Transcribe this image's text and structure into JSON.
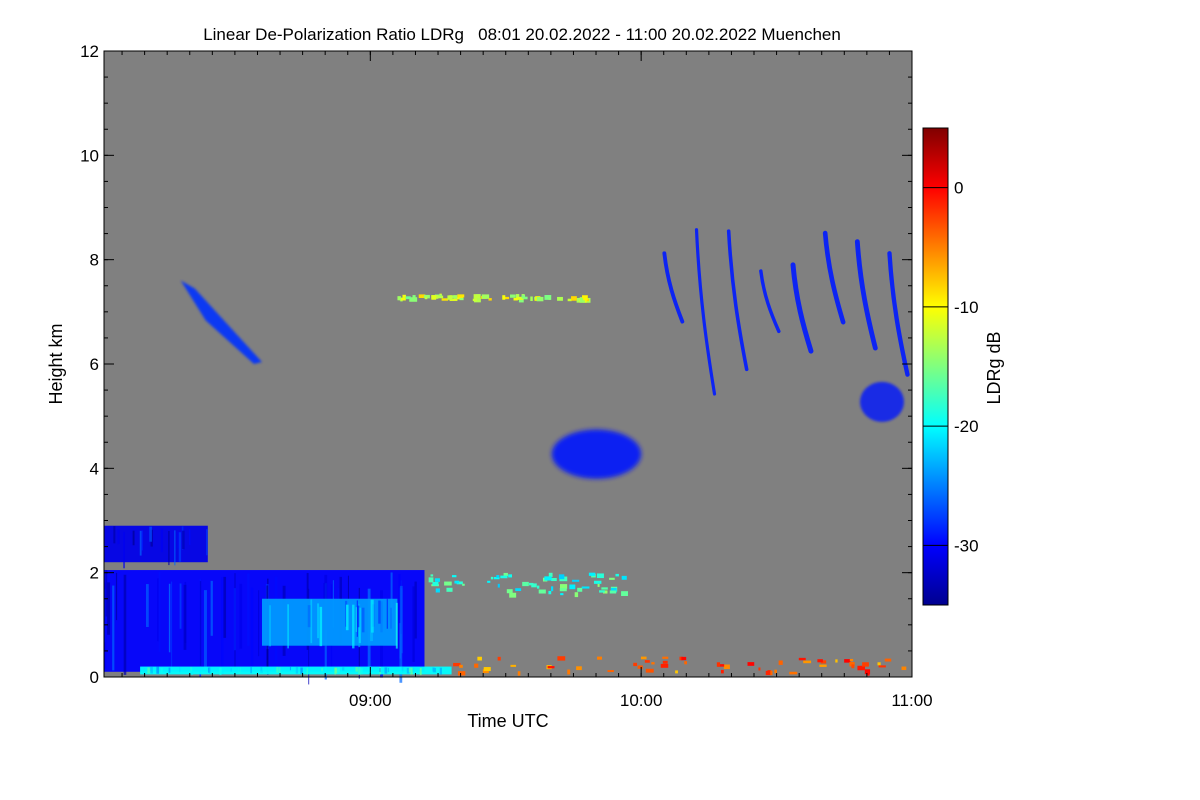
{
  "chart_data": {
    "type": "heatmap",
    "title": "Linear De-Polarization Ratio LDRg   08:01 20.02.2022 - 11:00 20.02.2022 Muenchen",
    "xlabel": "Time UTC",
    "ylabel": "Height km",
    "x_range_utc_hours": [
      8.0167,
      11.0
    ],
    "y_range_km": [
      0,
      12
    ],
    "x_ticks": [
      {
        "value": 9.0,
        "label": "09:00"
      },
      {
        "value": 10.0,
        "label": "10:00"
      },
      {
        "value": 11.0,
        "label": "11:00"
      }
    ],
    "y_ticks": [
      {
        "value": 0,
        "label": "0"
      },
      {
        "value": 2,
        "label": "2"
      },
      {
        "value": 4,
        "label": "4"
      },
      {
        "value": 6,
        "label": "6"
      },
      {
        "value": 8,
        "label": "8"
      },
      {
        "value": 10,
        "label": "10"
      },
      {
        "value": 12,
        "label": "12"
      }
    ],
    "colorbar": {
      "label": "LDRg dB",
      "range_db": [
        -35,
        5
      ],
      "ticks": [
        {
          "value": 0,
          "label": "0"
        },
        {
          "value": -10,
          "label": "-10"
        },
        {
          "value": -20,
          "label": "-20"
        },
        {
          "value": -30,
          "label": "-30"
        }
      ]
    },
    "background_no_data_color": "#808080",
    "regions": [
      {
        "name": "boundary-layer",
        "t_start": 8.017,
        "t_end": 9.2,
        "h_bottom": 0.1,
        "h_top": 2.05,
        "ldr_db": -30
      },
      {
        "name": "boundary-layer-core",
        "t_start": 8.6,
        "t_end": 9.1,
        "h_bottom": 0.6,
        "h_top": 1.5,
        "ldr_db": -24
      },
      {
        "name": "boundary-layer-base",
        "t_start": 8.15,
        "t_end": 9.3,
        "h_bottom": 0.05,
        "h_top": 0.2,
        "ldr_db": -20
      },
      {
        "name": "low-cloud-top",
        "t_start": 8.017,
        "t_end": 8.4,
        "h_bottom": 2.2,
        "h_top": 2.9,
        "ldr_db": -31
      },
      {
        "name": "aerosol-layer-edge",
        "t_start": 9.2,
        "t_end": 9.95,
        "h_bottom": 1.6,
        "h_top": 2.0,
        "ldr_db": -18
      },
      {
        "name": "mid-level-cloud",
        "t_start": 9.67,
        "t_end": 10.0,
        "h_bottom": 3.8,
        "h_top": 4.85,
        "ldr_db": -29
      },
      {
        "name": "cirrus-fall-streak-1",
        "t_start": 8.3,
        "t_end": 8.6,
        "h_bottom": 6.0,
        "h_top": 7.6,
        "ldr_db": -28
      },
      {
        "name": "cirrus-fall-streaks",
        "t_start": 10.05,
        "t_end": 11.0,
        "h_bottom": 4.5,
        "h_top": 8.8,
        "ldr_db": -29
      },
      {
        "name": "near-surface-rain",
        "t_start": 9.3,
        "t_end": 11.0,
        "h_bottom": 0.1,
        "h_top": 0.4,
        "ldr_db": -4
      },
      {
        "name": "thin-layer-7km",
        "t_start": 9.1,
        "t_end": 9.8,
        "h_bottom": 7.25,
        "h_top": 7.35,
        "ldr_db": -12
      }
    ]
  }
}
